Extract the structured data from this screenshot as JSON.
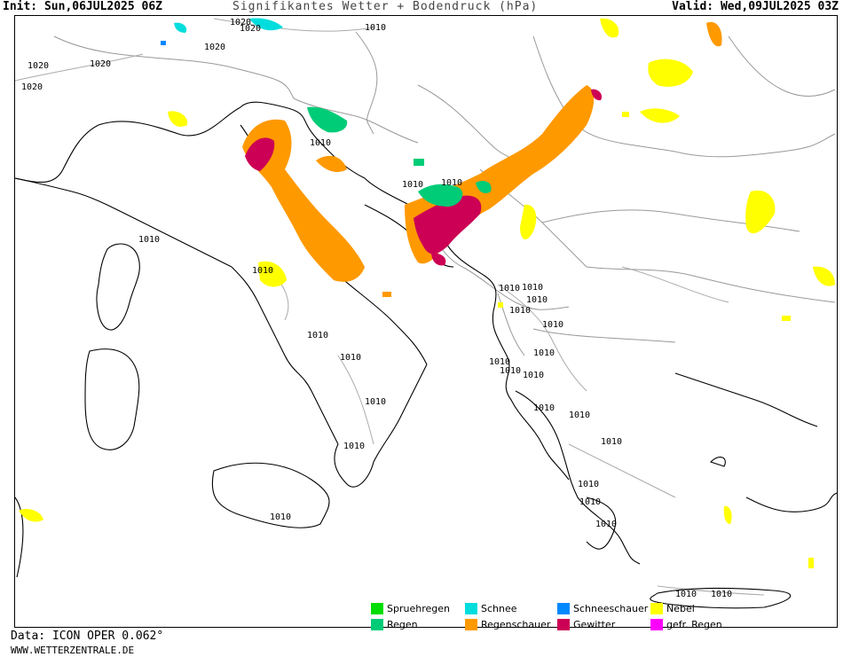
{
  "header": {
    "init": "Init: Sun,06JUL2025 06Z",
    "title": "Signifikantes Wetter + Bodendruck (hPa)",
    "valid": "Valid: Wed,09JUL2025 03Z"
  },
  "footer": {
    "data_source": "Data: ICON OPER 0.062°",
    "website": "WWW.WETTERZENTRALE.DE"
  },
  "legend": [
    {
      "label": "Spruehregen",
      "color": "#00dd00"
    },
    {
      "label": "Regen",
      "color": "#00cc77"
    },
    {
      "label": "Schnee",
      "color": "#00dddd"
    },
    {
      "label": "Regenschauer",
      "color": "#ff9900"
    },
    {
      "label": "Schneeschauer",
      "color": "#0088ff"
    },
    {
      "label": "Gewitter",
      "color": "#cc0055"
    },
    {
      "label": "Nebel",
      "color": "#ffff00"
    },
    {
      "label": "gefr. Regen",
      "color": "#ff00ff"
    }
  ],
  "colors": {
    "coast": "#000000",
    "borders": "#999999",
    "isobars": "#aaaaaa"
  },
  "isobar_labels": [
    "1020",
    "1020",
    "1020",
    "1020",
    "1020",
    "1020",
    "1010",
    "1010",
    "1010",
    "1010",
    "1010",
    "1010",
    "1010",
    "1010",
    "1010",
    "1010",
    "1010",
    "1010",
    "1010",
    "1010",
    "1010",
    "1010",
    "1010",
    "1010",
    "1010",
    "1010",
    "1010",
    "1010",
    "1010",
    "1010",
    "1010",
    "1010",
    "1010",
    "1010"
  ]
}
